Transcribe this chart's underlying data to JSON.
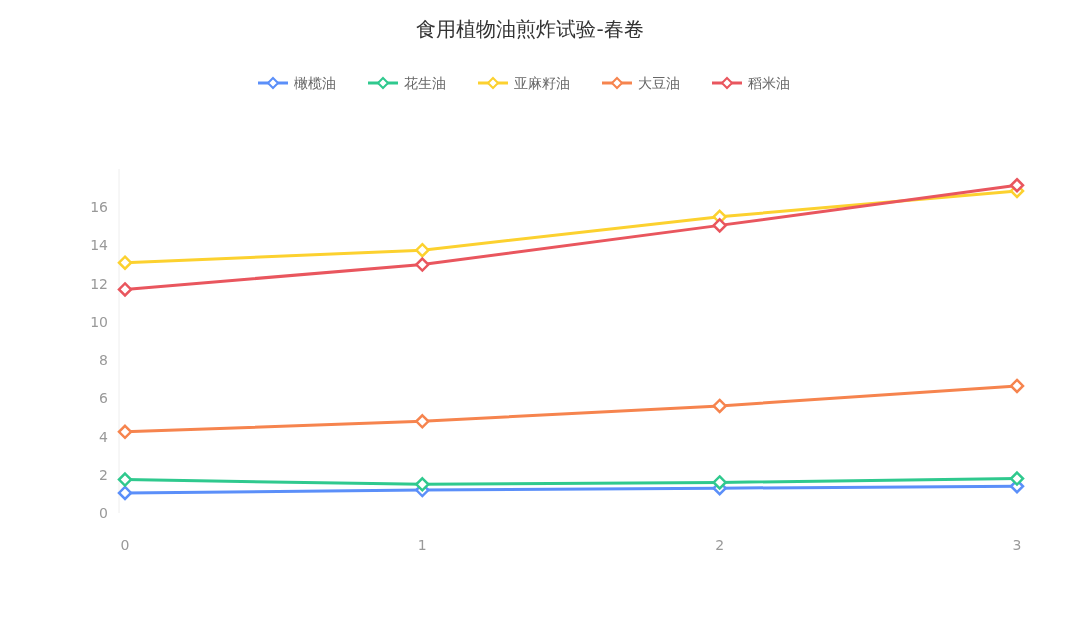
{
  "chart_data": {
    "type": "line",
    "title": "食用植物油煎炸试验-春卷",
    "x": [
      0,
      1,
      2,
      3
    ],
    "xlim": [
      0,
      3
    ],
    "xticks": [
      0,
      1,
      2,
      3
    ],
    "ylim": [
      0,
      18
    ],
    "yticks": [
      0,
      2,
      4,
      6,
      8,
      10,
      12,
      14,
      16
    ],
    "grid": false,
    "legend": "top",
    "marker": "diamond",
    "line_style": "solid",
    "series": [
      {
        "name": "橄榄油",
        "color": "#5b8ff9",
        "values": [
          1.05,
          1.2,
          1.3,
          1.4
        ]
      },
      {
        "name": "花生油",
        "color": "#2fc98e",
        "values": [
          1.75,
          1.5,
          1.6,
          1.8
        ]
      },
      {
        "name": "亚麻籽油",
        "color": "#fcd12f",
        "values": [
          13.1,
          13.75,
          15.5,
          16.85
        ]
      },
      {
        "name": "大豆油",
        "color": "#f6844e",
        "values": [
          4.25,
          4.8,
          5.6,
          6.65
        ]
      },
      {
        "name": "稻米油",
        "color": "#e9565e",
        "values": [
          11.7,
          13.0,
          15.05,
          17.15
        ]
      }
    ]
  }
}
